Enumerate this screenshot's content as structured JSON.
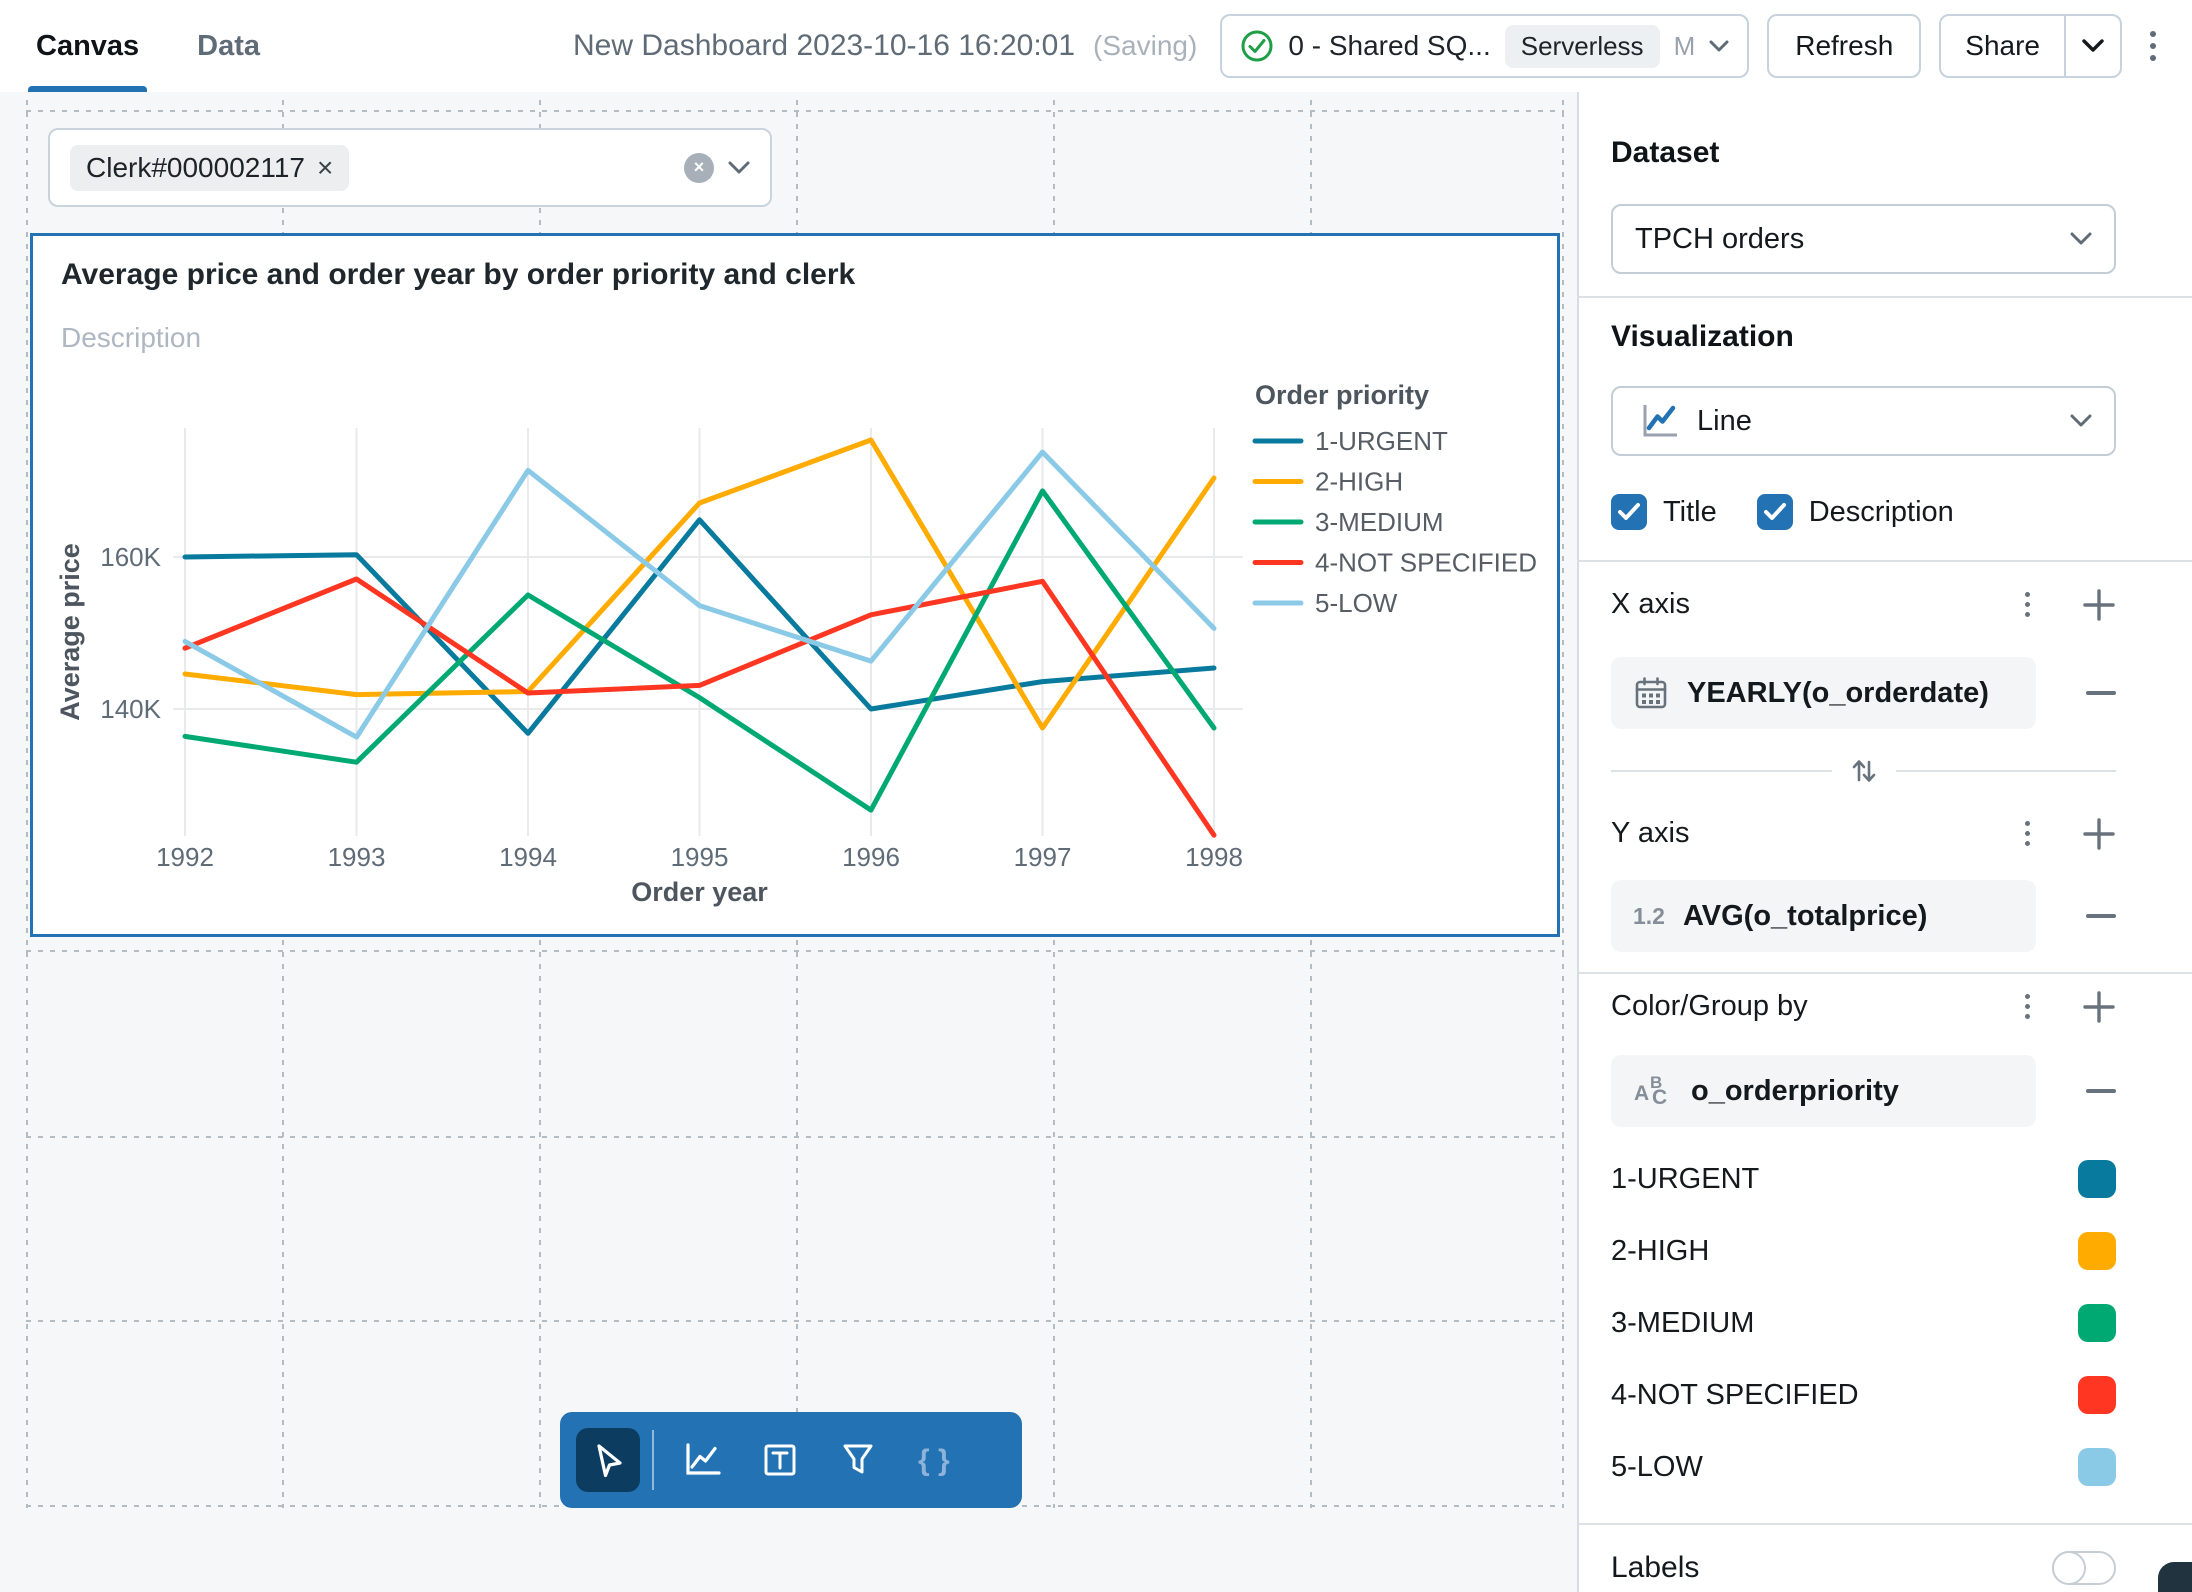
{
  "header": {
    "tabs": [
      {
        "label": "Canvas",
        "active": true
      },
      {
        "label": "Data",
        "active": false
      }
    ],
    "title": "New Dashboard 2023-10-16 16:20:01",
    "saving_indicator": "(Saving)",
    "warehouse": {
      "name": "0 - Shared SQ...",
      "badge": "Serverless",
      "size": "M",
      "status_color": "#1E9E46"
    },
    "refresh_label": "Refresh",
    "share_label": "Share"
  },
  "canvas": {
    "filter": {
      "chip_value": "Clerk#000002117",
      "chip_remove": "×",
      "clear_glyph": "×"
    },
    "widget": {
      "title": "Average price and order year by order priority and clerk",
      "description_placeholder": "Description"
    }
  },
  "toolbar": {
    "tools": [
      "cursor",
      "add-visualization",
      "add-text",
      "add-filter",
      "code"
    ]
  },
  "sidebar": {
    "dataset": {
      "label": "Dataset",
      "value": "TPCH orders"
    },
    "visualization": {
      "label": "Visualization",
      "value": "Line"
    },
    "checkboxes": [
      {
        "label": "Title",
        "checked": true
      },
      {
        "label": "Description",
        "checked": true
      }
    ],
    "x_axis": {
      "label": "X axis",
      "field": "YEARLY(o_orderdate)"
    },
    "y_axis": {
      "label": "Y axis",
      "field": "AVG(o_totalprice)",
      "type_icon": "1.2"
    },
    "color_group": {
      "label": "Color/Group by",
      "field": "o_orderpriority",
      "items": [
        {
          "label": "1-URGENT",
          "color": "#077A9D"
        },
        {
          "label": "2-HIGH",
          "color": "#FFAB00"
        },
        {
          "label": "3-MEDIUM",
          "color": "#00A972"
        },
        {
          "label": "4-NOT SPECIFIED",
          "color": "#FF3621"
        },
        {
          "label": "5-LOW",
          "color": "#8BCAE7"
        }
      ]
    },
    "labels_toggle": {
      "label": "Labels",
      "on": false
    }
  },
  "chart_data": {
    "type": "line",
    "title": "Average price and order year by order priority and clerk",
    "xlabel": "Order year",
    "ylabel": "Average price",
    "legend_title": "Order priority",
    "legend_position": "right",
    "grid": true,
    "x": [
      1992,
      1993,
      1994,
      1995,
      1996,
      1997,
      1998
    ],
    "yticks": [
      140,
      160
    ],
    "ytick_format": "K",
    "ylim": [
      121,
      178
    ],
    "series": [
      {
        "name": "1-URGENT",
        "color": "#077A9D",
        "values": [
          160.0,
          160.3,
          136.8,
          164.9,
          140.0,
          143.6,
          145.4
        ]
      },
      {
        "name": "2-HIGH",
        "color": "#FFAB00",
        "values": [
          144.6,
          141.9,
          142.3,
          167.1,
          175.4,
          137.5,
          170.4
        ]
      },
      {
        "name": "3-MEDIUM",
        "color": "#00A972",
        "values": [
          136.4,
          133.0,
          155.0,
          141.5,
          126.7,
          168.7,
          137.5
        ]
      },
      {
        "name": "4-NOT SPECIFIED",
        "color": "#FF3621",
        "values": [
          148.0,
          157.1,
          142.1,
          143.1,
          152.4,
          156.8,
          123.4
        ]
      },
      {
        "name": "5-LOW",
        "color": "#8BCAE7",
        "values": [
          148.9,
          136.3,
          171.4,
          153.6,
          146.3,
          173.8,
          150.6
        ]
      }
    ]
  }
}
